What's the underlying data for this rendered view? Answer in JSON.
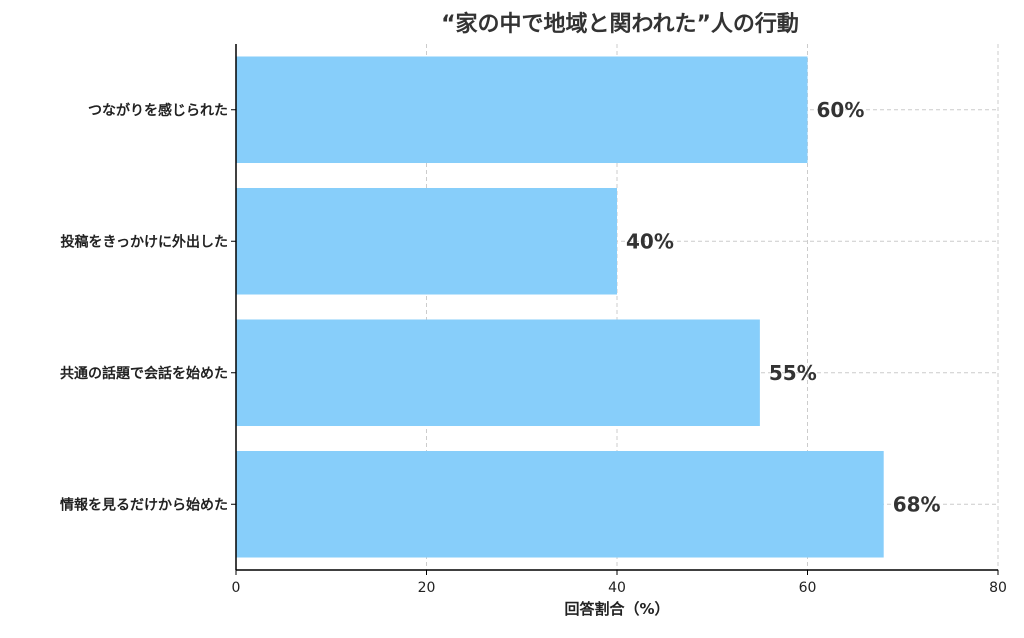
{
  "chart_data": {
    "type": "bar",
    "orientation": "horizontal",
    "title": "“家の中で地域と関われた”人の行動",
    "xlabel": "回答割合（%）",
    "ylabel": "",
    "categories": [
      "つながりを感じられた",
      "投稿をきっかけに外出した",
      "共通の話題で会話を始めた",
      "情報を見るだけから始めた"
    ],
    "values": [
      60,
      40,
      55,
      68
    ],
    "data_labels": [
      "60%",
      "40%",
      "55%",
      "68%"
    ],
    "xlim": [
      0,
      80
    ],
    "xticks": [
      0,
      20,
      40,
      60,
      80
    ],
    "xtick_labels": [
      "0",
      "20",
      "40",
      "60",
      "80"
    ],
    "grid": true,
    "bar_color": "#87CEFA"
  }
}
